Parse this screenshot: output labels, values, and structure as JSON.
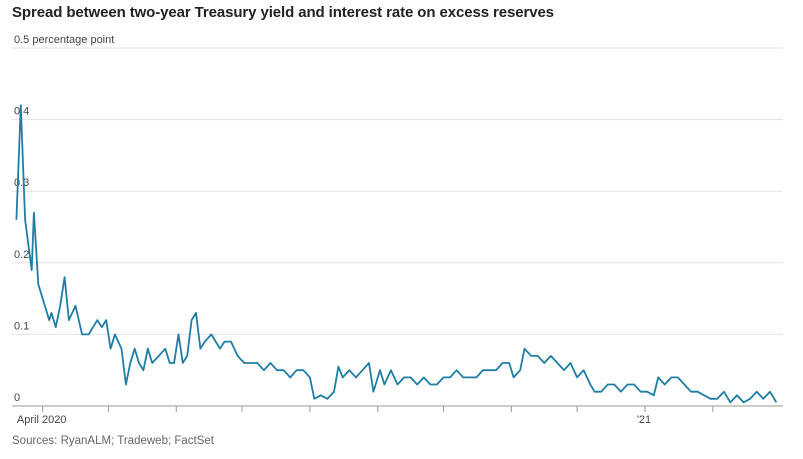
{
  "title": "Spread between two-year Treasury yield and interest rate on excess reserves",
  "source": "Sources: RyanALM; Tradeweb; FactSet",
  "chart_data": {
    "type": "line",
    "title": "Spread between two-year Treasury yield and interest rate on excess reserves",
    "ylabel": "",
    "xlabel": "",
    "ylim": [
      0,
      0.5
    ],
    "yticks": [
      {
        "value": 0,
        "label": "0"
      },
      {
        "value": 0.1,
        "label": "0.1"
      },
      {
        "value": 0.2,
        "label": "0.2"
      },
      {
        "value": 0.3,
        "label": "0.3"
      },
      {
        "value": 0.4,
        "label": "0.4"
      },
      {
        "value": 0.5,
        "label": "0.5 percentage point"
      }
    ],
    "xlim": [
      "2020-03-18",
      "2021-03-05"
    ],
    "xticks": [
      {
        "x": "2020-04-01",
        "label": "April 2020"
      },
      {
        "x": "2020-05-01",
        "label": ""
      },
      {
        "x": "2020-06-01",
        "label": ""
      },
      {
        "x": "2020-07-01",
        "label": ""
      },
      {
        "x": "2020-08-01",
        "label": ""
      },
      {
        "x": "2020-09-01",
        "label": ""
      },
      {
        "x": "2020-10-01",
        "label": ""
      },
      {
        "x": "2020-11-01",
        "label": ""
      },
      {
        "x": "2020-12-01",
        "label": ""
      },
      {
        "x": "2021-01-01",
        "label": "'21"
      },
      {
        "x": "2021-02-01",
        "label": ""
      }
    ],
    "grid": true,
    "color": "#1f7ea6",
    "series": [
      {
        "values": [
          [
            "2020-03-20",
            0.26
          ],
          [
            "2020-03-22",
            0.42
          ],
          [
            "2020-03-24",
            0.26
          ],
          [
            "2020-03-27",
            0.19
          ],
          [
            "2020-03-28",
            0.27
          ],
          [
            "2020-03-30",
            0.17
          ],
          [
            "2020-04-01",
            0.15
          ],
          [
            "2020-04-03",
            0.13
          ],
          [
            "2020-04-04",
            0.12
          ],
          [
            "2020-04-05",
            0.13
          ],
          [
            "2020-04-07",
            0.11
          ],
          [
            "2020-04-09",
            0.14
          ],
          [
            "2020-04-11",
            0.18
          ],
          [
            "2020-04-13",
            0.12
          ],
          [
            "2020-04-16",
            0.14
          ],
          [
            "2020-04-19",
            0.1
          ],
          [
            "2020-04-22",
            0.1
          ],
          [
            "2020-04-24",
            0.11
          ],
          [
            "2020-04-26",
            0.12
          ],
          [
            "2020-04-28",
            0.11
          ],
          [
            "2020-04-30",
            0.12
          ],
          [
            "2020-05-02",
            0.08
          ],
          [
            "2020-05-04",
            0.1
          ],
          [
            "2020-05-07",
            0.08
          ],
          [
            "2020-05-09",
            0.03
          ],
          [
            "2020-05-11",
            0.06
          ],
          [
            "2020-05-13",
            0.08
          ],
          [
            "2020-05-15",
            0.06
          ],
          [
            "2020-05-17",
            0.05
          ],
          [
            "2020-05-19",
            0.08
          ],
          [
            "2020-05-21",
            0.06
          ],
          [
            "2020-05-24",
            0.07
          ],
          [
            "2020-05-27",
            0.08
          ],
          [
            "2020-05-29",
            0.06
          ],
          [
            "2020-05-31",
            0.06
          ],
          [
            "2020-06-02",
            0.1
          ],
          [
            "2020-06-04",
            0.06
          ],
          [
            "2020-06-06",
            0.07
          ],
          [
            "2020-06-08",
            0.12
          ],
          [
            "2020-06-10",
            0.13
          ],
          [
            "2020-06-12",
            0.08
          ],
          [
            "2020-06-14",
            0.09
          ],
          [
            "2020-06-17",
            0.1
          ],
          [
            "2020-06-19",
            0.09
          ],
          [
            "2020-06-21",
            0.08
          ],
          [
            "2020-06-23",
            0.09
          ],
          [
            "2020-06-26",
            0.09
          ],
          [
            "2020-06-29",
            0.07
          ],
          [
            "2020-07-02",
            0.06
          ],
          [
            "2020-07-05",
            0.06
          ],
          [
            "2020-07-08",
            0.06
          ],
          [
            "2020-07-11",
            0.05
          ],
          [
            "2020-07-14",
            0.06
          ],
          [
            "2020-07-17",
            0.05
          ],
          [
            "2020-07-20",
            0.05
          ],
          [
            "2020-07-23",
            0.04
          ],
          [
            "2020-07-26",
            0.05
          ],
          [
            "2020-07-29",
            0.05
          ],
          [
            "2020-08-01",
            0.04
          ],
          [
            "2020-08-03",
            0.01
          ],
          [
            "2020-08-06",
            0.015
          ],
          [
            "2020-08-09",
            0.01
          ],
          [
            "2020-08-12",
            0.02
          ],
          [
            "2020-08-14",
            0.055
          ],
          [
            "2020-08-16",
            0.04
          ],
          [
            "2020-08-19",
            0.05
          ],
          [
            "2020-08-22",
            0.04
          ],
          [
            "2020-08-25",
            0.05
          ],
          [
            "2020-08-28",
            0.06
          ],
          [
            "2020-08-30",
            0.02
          ],
          [
            "2020-09-02",
            0.05
          ],
          [
            "2020-09-04",
            0.03
          ],
          [
            "2020-09-07",
            0.05
          ],
          [
            "2020-09-10",
            0.03
          ],
          [
            "2020-09-13",
            0.04
          ],
          [
            "2020-09-16",
            0.04
          ],
          [
            "2020-09-19",
            0.03
          ],
          [
            "2020-09-22",
            0.04
          ],
          [
            "2020-09-25",
            0.03
          ],
          [
            "2020-09-28",
            0.03
          ],
          [
            "2020-10-01",
            0.04
          ],
          [
            "2020-10-04",
            0.04
          ],
          [
            "2020-10-07",
            0.05
          ],
          [
            "2020-10-10",
            0.04
          ],
          [
            "2020-10-13",
            0.04
          ],
          [
            "2020-10-16",
            0.04
          ],
          [
            "2020-10-19",
            0.05
          ],
          [
            "2020-10-22",
            0.05
          ],
          [
            "2020-10-25",
            0.05
          ],
          [
            "2020-10-28",
            0.06
          ],
          [
            "2020-10-31",
            0.06
          ],
          [
            "2020-11-02",
            0.04
          ],
          [
            "2020-11-05",
            0.05
          ],
          [
            "2020-11-07",
            0.08
          ],
          [
            "2020-11-10",
            0.07
          ],
          [
            "2020-11-13",
            0.07
          ],
          [
            "2020-11-16",
            0.06
          ],
          [
            "2020-11-19",
            0.07
          ],
          [
            "2020-11-22",
            0.06
          ],
          [
            "2020-11-25",
            0.05
          ],
          [
            "2020-11-28",
            0.06
          ],
          [
            "2020-12-01",
            0.04
          ],
          [
            "2020-12-04",
            0.05
          ],
          [
            "2020-12-07",
            0.03
          ],
          [
            "2020-12-09",
            0.02
          ],
          [
            "2020-12-12",
            0.02
          ],
          [
            "2020-12-15",
            0.03
          ],
          [
            "2020-12-18",
            0.03
          ],
          [
            "2020-12-21",
            0.02
          ],
          [
            "2020-12-24",
            0.03
          ],
          [
            "2020-12-27",
            0.03
          ],
          [
            "2020-12-30",
            0.02
          ],
          [
            "2021-01-02",
            0.02
          ],
          [
            "2021-01-05",
            0.015
          ],
          [
            "2021-01-07",
            0.04
          ],
          [
            "2021-01-10",
            0.03
          ],
          [
            "2021-01-13",
            0.04
          ],
          [
            "2021-01-16",
            0.04
          ],
          [
            "2021-01-19",
            0.03
          ],
          [
            "2021-01-22",
            0.02
          ],
          [
            "2021-01-25",
            0.02
          ],
          [
            "2021-01-28",
            0.015
          ],
          [
            "2021-01-31",
            0.01
          ],
          [
            "2021-02-03",
            0.01
          ],
          [
            "2021-02-06",
            0.02
          ],
          [
            "2021-02-09",
            0.005
          ],
          [
            "2021-02-12",
            0.015
          ],
          [
            "2021-02-15",
            0.005
          ],
          [
            "2021-02-18",
            0.01
          ],
          [
            "2021-02-21",
            0.02
          ],
          [
            "2021-02-24",
            0.01
          ],
          [
            "2021-02-27",
            0.02
          ],
          [
            "2021-03-02",
            0.005
          ]
        ]
      }
    ]
  }
}
